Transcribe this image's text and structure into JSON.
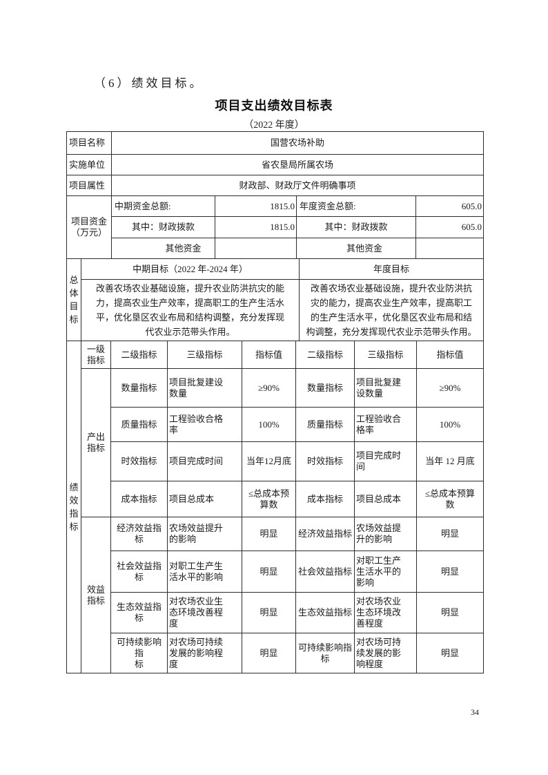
{
  "page": {
    "heading": "（6）绩效目标。",
    "title": "项目支出绩效目标表",
    "subtitle": "（2022 年度）",
    "page_number": "34"
  },
  "info_rows": [
    {
      "label": "项目名称",
      "value": "国营农场补助"
    },
    {
      "label": "实施单位",
      "value": "省农垦局所属农场"
    },
    {
      "label": "项目属性",
      "value": "财政部、财政厅文件明确事项"
    }
  ],
  "funding": {
    "row_label": "项目资金\n（万元）",
    "rows": [
      {
        "mid_label": "中期资金总额:",
        "mid_value": "1815.0",
        "annual_label": "年度资金总额:",
        "annual_value": "605.0"
      },
      {
        "mid_label": "其中：财政拨款",
        "mid_value": "1815.0",
        "annual_label": "其中：财政拨款",
        "annual_value": "605.0"
      },
      {
        "mid_label": "其他资金",
        "mid_value": "",
        "annual_label": "其他资金",
        "annual_value": ""
      }
    ]
  },
  "overall_goal": {
    "row_label": "总体目标",
    "mid_header": "中期目标（2022 年-2024 年）",
    "annual_header": "年度目标",
    "mid_text": "改善农场农业基础设施，提升农业防洪抗灾的能\n力，提高农业生产效率，提高职工的生产生活水\n平，优化垦区农业布局和结构调整，充分发挥现\n代农业示范带头作用。",
    "annual_text": "改善农场农业基础设施，提升农业防洪抗\n灾的能力，提高农业生产效率，提高职工\n的生产生活水平，优化垦区农业布局和结\n构调整，充分发挥现代农业示范带头作用。"
  },
  "indicators": {
    "row_label": "绩效指标",
    "header": {
      "level1": "一级\n指标",
      "level2_mid": "二级指标",
      "level3_mid": "三级指标",
      "value_mid": "指标值",
      "level2_annual": "二级指标",
      "level3_annual": "三级指标",
      "value_annual": "指标值"
    },
    "groups": {
      "output": "产出\n指标",
      "benefit": "效益\n指标"
    },
    "rows": [
      {
        "l2": "数量指标",
        "l3": "项目批复建设\n数量",
        "v": "≥90%",
        "r2": "数量指标",
        "r3": "项目批复建\n设数量",
        "rv": "≥90%"
      },
      {
        "l2": "质量指标",
        "l3": "工程验收合格\n率",
        "v": "100%",
        "r2": "质量指标",
        "r3": "工程验收合\n格率",
        "rv": "100%"
      },
      {
        "l2": "时效指标",
        "l3": "项目完成时间",
        "v": "当年12月底",
        "r2": "时效指标",
        "r3": "项目完成时\n间",
        "rv": "当年 12 月底"
      },
      {
        "l2": "成本指标",
        "l3": "项目总成本",
        "v": "≤总成本预\n算数",
        "r2": "成本指标",
        "r3": "项目总成本",
        "rv": "≤总成本预算\n数"
      },
      {
        "l2": "经济效益指标",
        "l3": "农场效益提升\n的影响",
        "v": "明显",
        "r2": "经济效益指标",
        "r3": "农场效益提\n升的影响",
        "rv": "明显"
      },
      {
        "l2": "社会效益指标",
        "l3": "对职工生产生\n活水平的影响",
        "v": "明显",
        "r2": "社会效益指标",
        "r3": "对职工生产\n生活水平的\n影响",
        "rv": "明显"
      },
      {
        "l2": "生态效益指标",
        "l3": "对农场农业生\n态环境改善程\n度",
        "v": "明显",
        "r2": "生态效益指标",
        "r3": "对农场农业\n生态环境改\n善程度",
        "rv": "明显"
      },
      {
        "l2": "可持续影响指\n标",
        "l3": "对农场可持续\n发展的影响程\n度",
        "v": "明显",
        "r2": "可持续影响指\n标",
        "r3": "对农场可持\n续发展的影\n响程度",
        "rv": "明显"
      }
    ]
  }
}
